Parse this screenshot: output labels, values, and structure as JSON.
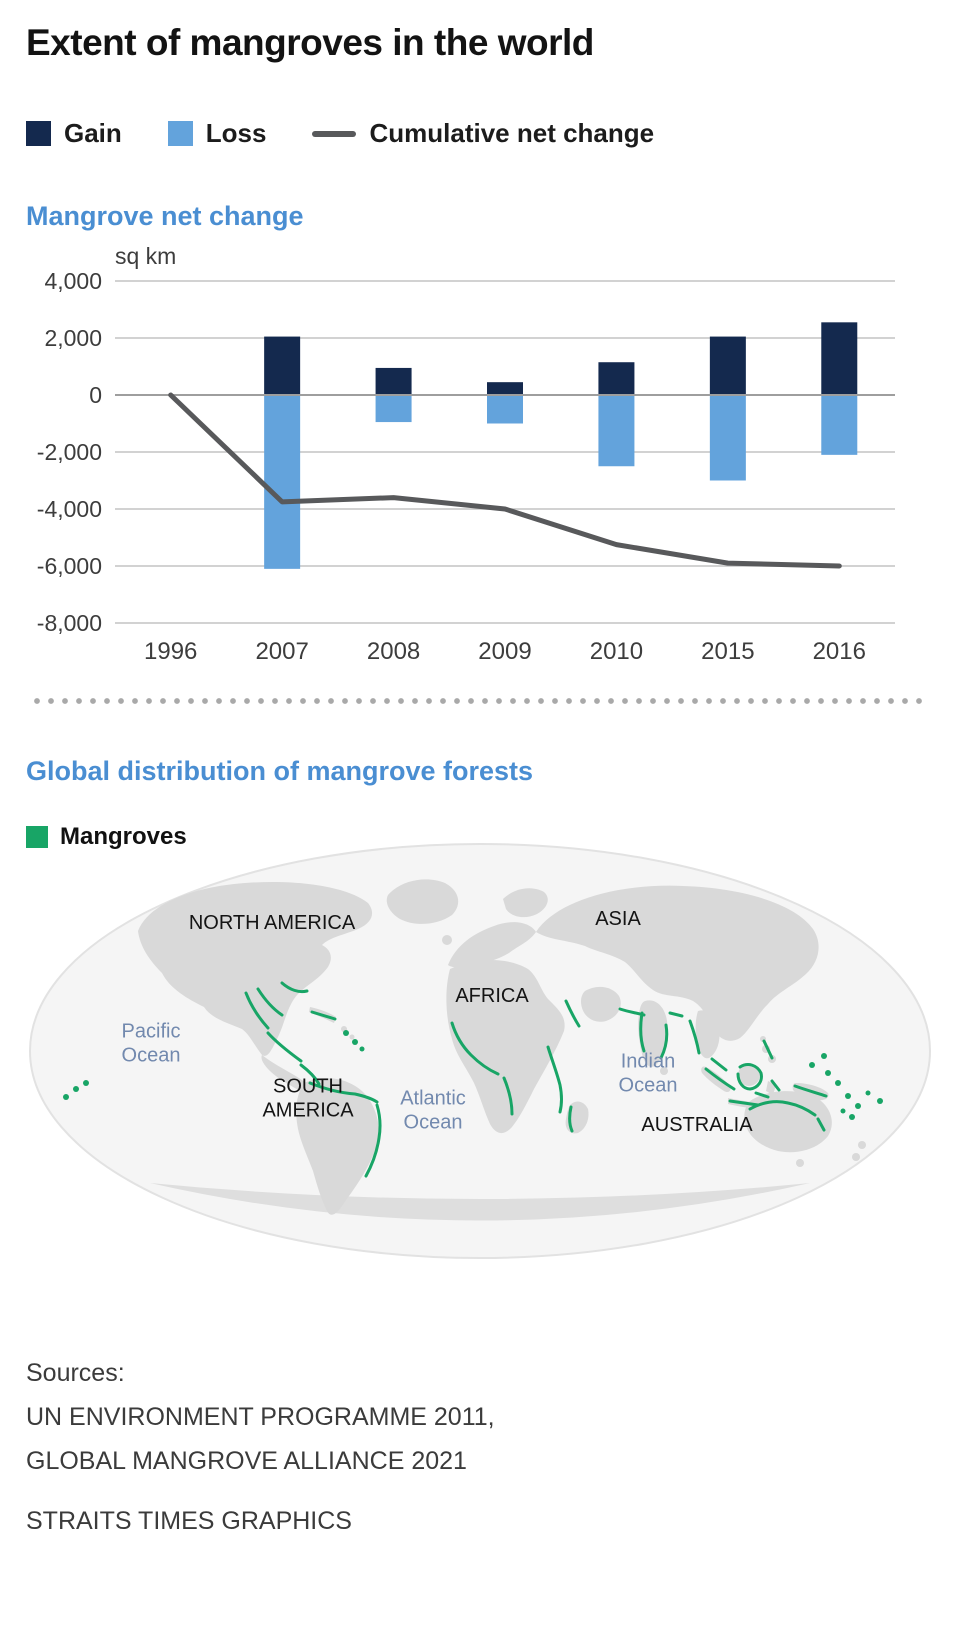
{
  "page": {
    "title": "Extent of mangroves in the world"
  },
  "colors": {
    "gain": "#14294e",
    "loss": "#63a3dc",
    "line": "#58595b",
    "heading": "#4a8ed2",
    "mangrove": "#18a566",
    "ocean_label": "#7289ae"
  },
  "chart_data": {
    "type": "bar",
    "subtype": "grouped bars with cumulative line overlay",
    "title": "Mangrove net change",
    "ylabel": "sq km",
    "categories": [
      "1996",
      "2007",
      "2008",
      "2009",
      "2010",
      "2015",
      "2016"
    ],
    "series": [
      {
        "name": "Gain",
        "type": "bar",
        "color": "#14294e",
        "values": [
          0,
          2050,
          950,
          450,
          1150,
          2050,
          2550
        ]
      },
      {
        "name": "Loss",
        "type": "bar",
        "color": "#63a3dc",
        "values": [
          0,
          -6100,
          -950,
          -1000,
          -2500,
          -3000,
          -2100
        ]
      },
      {
        "name": "Cumulative net change",
        "type": "line",
        "color": "#58595b",
        "values": [
          0,
          -3750,
          -3600,
          -4000,
          -5250,
          -5900,
          -6000
        ]
      }
    ],
    "ylim": [
      -8000,
      4000
    ],
    "yticks": [
      4000,
      2000,
      0,
      -2000,
      -4000,
      -6000,
      -8000
    ],
    "grid": true,
    "legend_position": "top"
  },
  "map_section": {
    "heading": "Global distribution of mangrove forests",
    "legend_label": "Mangroves",
    "labels": {
      "north_america": "NORTH AMERICA",
      "asia": "ASIA",
      "africa": "AFRICA",
      "south_america": "SOUTH AMERICA",
      "australia": "AUSTRALIA",
      "pacific_ocean": "Pacific Ocean",
      "atlantic_ocean": "Atlantic Ocean",
      "indian_ocean": "Indian Ocean"
    }
  },
  "sources": {
    "label": "Sources:",
    "line1": "UN ENVIRONMENT PROGRAMME 2011,",
    "line2": "GLOBAL MANGROVE ALLIANCE 2021",
    "credit": "STRAITS TIMES GRAPHICS"
  }
}
